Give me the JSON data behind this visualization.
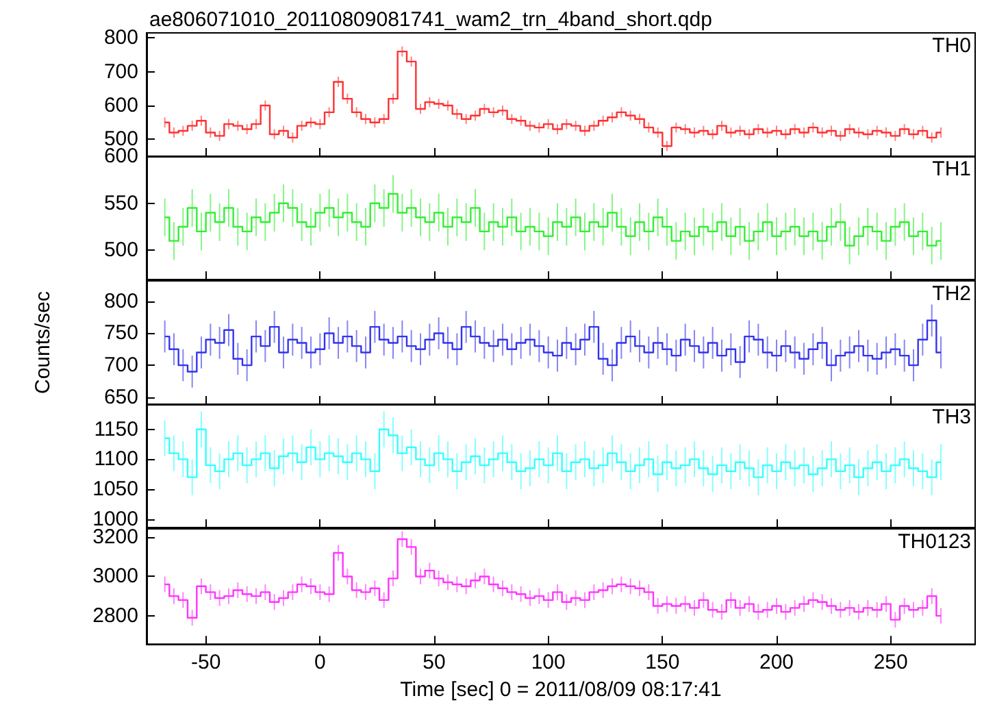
{
  "chart_data": [
    {
      "type": "step",
      "title": "ae806071010_20110809081741_wam2_trn_4band_short.qdp",
      "tick_labels": "y",
      "legend": "top right",
      "grid": false,
      "xlim": [
        -76,
        287
      ],
      "xticks": [
        -50,
        0,
        50,
        100,
        150,
        200,
        250
      ],
      "ylim": [
        450,
        815
      ],
      "yticks": [
        500,
        600,
        700,
        800
      ],
      "x": [
        -68,
        -64,
        -60,
        -56,
        -52,
        -48,
        -44,
        -40,
        -36,
        -32,
        -28,
        -24,
        -20,
        -16,
        -12,
        -8,
        -4,
        0,
        4,
        8,
        12,
        16,
        20,
        24,
        28,
        32,
        36,
        40,
        44,
        48,
        52,
        56,
        60,
        64,
        68,
        72,
        76,
        80,
        84,
        88,
        92,
        96,
        100,
        104,
        108,
        112,
        116,
        120,
        124,
        128,
        132,
        136,
        140,
        144,
        148,
        152,
        156,
        160,
        164,
        168,
        172,
        176,
        180,
        184,
        188,
        192,
        196,
        200,
        204,
        208,
        212,
        216,
        220,
        224,
        228,
        232,
        236,
        240,
        244,
        248,
        252,
        256,
        260,
        264,
        268,
        272
      ],
      "series": [
        {
          "name": "TH0",
          "color": "#ff3030",
          "values": [
            550,
            520,
            525,
            540,
            555,
            520,
            510,
            545,
            540,
            530,
            545,
            600,
            515,
            525,
            505,
            540,
            550,
            545,
            580,
            670,
            620,
            580,
            560,
            550,
            560,
            620,
            760,
            730,
            590,
            610,
            605,
            600,
            575,
            560,
            570,
            590,
            580,
            585,
            560,
            555,
            540,
            535,
            545,
            530,
            545,
            540,
            525,
            540,
            555,
            565,
            580,
            570,
            560,
            535,
            520,
            480,
            535,
            530,
            520,
            525,
            515,
            540,
            520,
            525,
            515,
            530,
            520,
            525,
            515,
            530,
            520,
            535,
            520,
            525,
            510,
            530,
            520,
            515,
            525,
            520,
            510,
            530,
            515,
            525,
            505,
            520
          ],
          "errors": [
            15,
            15,
            15,
            15,
            15,
            15,
            15,
            15,
            15,
            15,
            15,
            15,
            15,
            15,
            15,
            15,
            15,
            15,
            15,
            15,
            15,
            15,
            15,
            15,
            15,
            15,
            15,
            15,
            15,
            15,
            15,
            15,
            15,
            15,
            15,
            15,
            15,
            15,
            15,
            15,
            15,
            15,
            15,
            15,
            15,
            15,
            15,
            15,
            15,
            15,
            15,
            15,
            15,
            15,
            15,
            15,
            15,
            15,
            15,
            15,
            15,
            15,
            15,
            15,
            15,
            15,
            15,
            15,
            15,
            15,
            15,
            15,
            15,
            15,
            15,
            15,
            15,
            15,
            15,
            15,
            15,
            15,
            15,
            15,
            15,
            15
          ]
        }
      ]
    },
    {
      "type": "step",
      "tick_labels": "y",
      "legend": "top right",
      "grid": false,
      "xlim": [
        -76,
        287
      ],
      "xticks": [
        -50,
        0,
        50,
        100,
        150,
        200,
        250
      ],
      "ylim": [
        469,
        600
      ],
      "yticks": [
        500,
        550,
        600
      ],
      "x": [
        -68,
        -64,
        -60,
        -56,
        -52,
        -48,
        -44,
        -40,
        -36,
        -32,
        -28,
        -24,
        -20,
        -16,
        -12,
        -8,
        -4,
        0,
        4,
        8,
        12,
        16,
        20,
        24,
        28,
        32,
        36,
        40,
        44,
        48,
        52,
        56,
        60,
        64,
        68,
        72,
        76,
        80,
        84,
        88,
        92,
        96,
        100,
        104,
        108,
        112,
        116,
        120,
        124,
        128,
        132,
        136,
        140,
        144,
        148,
        152,
        156,
        160,
        164,
        168,
        172,
        176,
        180,
        184,
        188,
        192,
        196,
        200,
        204,
        208,
        212,
        216,
        220,
        224,
        228,
        232,
        236,
        240,
        244,
        248,
        252,
        256,
        260,
        264,
        268,
        272
      ],
      "series": [
        {
          "name": "TH1",
          "color": "#33ee33",
          "values": [
            535,
            510,
            525,
            545,
            520,
            540,
            530,
            545,
            525,
            520,
            535,
            530,
            540,
            550,
            545,
            530,
            525,
            540,
            545,
            535,
            540,
            530,
            525,
            550,
            545,
            560,
            540,
            545,
            535,
            530,
            540,
            525,
            535,
            530,
            545,
            520,
            530,
            525,
            535,
            520,
            525,
            520,
            515,
            530,
            525,
            535,
            520,
            530,
            525,
            540,
            525,
            515,
            530,
            520,
            535,
            525,
            510,
            520,
            515,
            525,
            520,
            530,
            515,
            525,
            510,
            520,
            530,
            515,
            520,
            525,
            515,
            520,
            510,
            525,
            530,
            505,
            515,
            525,
            520,
            510,
            525,
            530,
            515,
            520,
            505,
            510
          ],
          "errors": [
            20,
            20,
            20,
            20,
            20,
            20,
            20,
            20,
            20,
            20,
            20,
            20,
            20,
            20,
            20,
            20,
            20,
            20,
            20,
            20,
            20,
            20,
            20,
            20,
            20,
            20,
            20,
            20,
            20,
            20,
            20,
            20,
            20,
            20,
            20,
            20,
            20,
            20,
            20,
            20,
            20,
            20,
            20,
            20,
            20,
            20,
            20,
            20,
            20,
            20,
            20,
            20,
            20,
            20,
            20,
            20,
            20,
            20,
            20,
            20,
            20,
            20,
            20,
            20,
            20,
            20,
            20,
            20,
            20,
            20,
            20,
            20,
            20,
            20,
            20,
            20,
            20,
            20,
            20,
            20,
            20,
            20,
            20,
            20,
            20,
            20
          ]
        }
      ]
    },
    {
      "type": "step",
      "ylabel": "Counts/sec",
      "tick_labels": "y",
      "legend": "top right",
      "grid": false,
      "xlim": [
        -76,
        287
      ],
      "xticks": [
        -50,
        0,
        50,
        100,
        150,
        200,
        250
      ],
      "ylim": [
        639,
        832
      ],
      "yticks": [
        650,
        700,
        750,
        800
      ],
      "x": [
        -68,
        -64,
        -60,
        -56,
        -52,
        -48,
        -44,
        -40,
        -36,
        -32,
        -28,
        -24,
        -20,
        -16,
        -12,
        -8,
        -4,
        0,
        4,
        8,
        12,
        16,
        20,
        24,
        28,
        32,
        36,
        40,
        44,
        48,
        52,
        56,
        60,
        64,
        68,
        72,
        76,
        80,
        84,
        88,
        92,
        96,
        100,
        104,
        108,
        112,
        116,
        120,
        124,
        128,
        132,
        136,
        140,
        144,
        148,
        152,
        156,
        160,
        164,
        168,
        172,
        176,
        180,
        184,
        188,
        192,
        196,
        200,
        204,
        208,
        212,
        216,
        220,
        224,
        228,
        232,
        236,
        240,
        244,
        248,
        252,
        256,
        260,
        264,
        268,
        272
      ],
      "series": [
        {
          "name": "TH2",
          "color": "#3333ee",
          "values": [
            745,
            725,
            700,
            690,
            720,
            740,
            735,
            755,
            710,
            700,
            745,
            730,
            760,
            720,
            740,
            735,
            720,
            725,
            750,
            735,
            745,
            730,
            720,
            760,
            740,
            735,
            745,
            730,
            725,
            740,
            750,
            735,
            725,
            760,
            745,
            735,
            730,
            740,
            725,
            735,
            740,
            730,
            720,
            715,
            735,
            725,
            740,
            760,
            710,
            700,
            735,
            745,
            730,
            720,
            735,
            725,
            715,
            740,
            730,
            720,
            735,
            715,
            725,
            705,
            745,
            740,
            720,
            715,
            730,
            720,
            710,
            725,
            735,
            700,
            715,
            720,
            730,
            715,
            710,
            720,
            725,
            715,
            700,
            740,
            770,
            720
          ],
          "errors": [
            25,
            25,
            25,
            25,
            25,
            25,
            25,
            25,
            25,
            25,
            25,
            25,
            25,
            25,
            25,
            25,
            25,
            25,
            25,
            25,
            25,
            25,
            25,
            25,
            25,
            25,
            25,
            25,
            25,
            25,
            25,
            25,
            25,
            25,
            25,
            25,
            25,
            25,
            25,
            25,
            25,
            25,
            25,
            25,
            25,
            25,
            25,
            25,
            25,
            25,
            25,
            25,
            25,
            25,
            25,
            25,
            25,
            25,
            25,
            25,
            25,
            25,
            25,
            25,
            25,
            25,
            25,
            25,
            25,
            25,
            25,
            25,
            25,
            25,
            25,
            25,
            25,
            25,
            25,
            25,
            25,
            25,
            25,
            25,
            25,
            25
          ]
        }
      ]
    },
    {
      "type": "step",
      "tick_labels": "y",
      "legend": "top right",
      "grid": false,
      "xlim": [
        -76,
        287
      ],
      "xticks": [
        -50,
        0,
        50,
        100,
        150,
        200,
        250
      ],
      "ylim": [
        986,
        1192
      ],
      "yticks": [
        1000,
        1050,
        1100,
        1150
      ],
      "x": [
        -68,
        -64,
        -60,
        -56,
        -52,
        -48,
        -44,
        -40,
        -36,
        -32,
        -28,
        -24,
        -20,
        -16,
        -12,
        -8,
        -4,
        0,
        4,
        8,
        12,
        16,
        20,
        24,
        28,
        32,
        36,
        40,
        44,
        48,
        52,
        56,
        60,
        64,
        68,
        72,
        76,
        80,
        84,
        88,
        92,
        96,
        100,
        104,
        108,
        112,
        116,
        120,
        124,
        128,
        132,
        136,
        140,
        144,
        148,
        152,
        156,
        160,
        164,
        168,
        172,
        176,
        180,
        184,
        188,
        192,
        196,
        200,
        204,
        208,
        212,
        216,
        220,
        224,
        228,
        232,
        236,
        240,
        244,
        248,
        252,
        256,
        260,
        264,
        268,
        272
      ],
      "series": [
        {
          "name": "TH3",
          "color": "#33ffff",
          "values": [
            1135,
            1110,
            1100,
            1070,
            1150,
            1090,
            1080,
            1100,
            1110,
            1090,
            1100,
            1110,
            1085,
            1105,
            1110,
            1095,
            1120,
            1100,
            1110,
            1105,
            1095,
            1110,
            1100,
            1080,
            1150,
            1140,
            1110,
            1120,
            1100,
            1090,
            1110,
            1100,
            1080,
            1095,
            1105,
            1090,
            1100,
            1110,
            1095,
            1080,
            1085,
            1100,
            1090,
            1110,
            1080,
            1095,
            1100,
            1085,
            1090,
            1110,
            1095,
            1080,
            1090,
            1100,
            1075,
            1095,
            1085,
            1090,
            1100,
            1085,
            1075,
            1090,
            1080,
            1095,
            1085,
            1070,
            1090,
            1080,
            1095,
            1085,
            1090,
            1075,
            1085,
            1100,
            1080,
            1090,
            1070,
            1085,
            1095,
            1080,
            1090,
            1100,
            1085,
            1080,
            1070,
            1095
          ],
          "errors": [
            30,
            30,
            30,
            30,
            30,
            30,
            30,
            30,
            30,
            30,
            30,
            30,
            30,
            30,
            30,
            30,
            30,
            30,
            30,
            30,
            30,
            30,
            30,
            30,
            30,
            30,
            30,
            30,
            30,
            30,
            30,
            30,
            30,
            30,
            30,
            30,
            30,
            30,
            30,
            30,
            30,
            30,
            30,
            30,
            30,
            30,
            30,
            30,
            30,
            30,
            30,
            30,
            30,
            30,
            30,
            30,
            30,
            30,
            30,
            30,
            30,
            30,
            30,
            30,
            30,
            30,
            30,
            30,
            30,
            30,
            30,
            30,
            30,
            30,
            30,
            30,
            30,
            30,
            30,
            30,
            30,
            30,
            30,
            30,
            30,
            30
          ]
        }
      ]
    },
    {
      "type": "step",
      "xlabel": "Time [sec] 0 = 2011/08/09 08:17:41",
      "legend": "top right",
      "grid": false,
      "xlim": [
        -76,
        287
      ],
      "xticks": [
        -50,
        0,
        50,
        100,
        150,
        200,
        250
      ],
      "ylim": [
        2656,
        3242
      ],
      "yticks": [
        2800,
        3000,
        3200
      ],
      "x": [
        -68,
        -64,
        -60,
        -56,
        -52,
        -48,
        -44,
        -40,
        -36,
        -32,
        -28,
        -24,
        -20,
        -16,
        -12,
        -8,
        -4,
        0,
        4,
        8,
        12,
        16,
        20,
        24,
        28,
        32,
        36,
        40,
        44,
        48,
        52,
        56,
        60,
        64,
        68,
        72,
        76,
        80,
        84,
        88,
        92,
        96,
        100,
        104,
        108,
        112,
        116,
        120,
        124,
        128,
        132,
        136,
        140,
        144,
        148,
        152,
        156,
        160,
        164,
        168,
        172,
        176,
        180,
        184,
        188,
        192,
        196,
        200,
        204,
        208,
        212,
        216,
        220,
        224,
        228,
        232,
        236,
        240,
        244,
        248,
        252,
        256,
        260,
        264,
        268,
        272
      ],
      "series": [
        {
          "name": "TH0123",
          "color": "#ff33ff",
          "values": [
            2960,
            2900,
            2880,
            2790,
            2950,
            2920,
            2890,
            2900,
            2930,
            2910,
            2900,
            2920,
            2870,
            2890,
            2920,
            2960,
            2950,
            2920,
            2910,
            3120,
            3000,
            2930,
            2920,
            2940,
            2880,
            2990,
            3190,
            3150,
            3000,
            3030,
            2990,
            2970,
            2960,
            2950,
            2980,
            3000,
            2960,
            2940,
            2920,
            2910,
            2890,
            2900,
            2880,
            2920,
            2870,
            2890,
            2880,
            2920,
            2930,
            2950,
            2960,
            2950,
            2940,
            2920,
            2850,
            2860,
            2850,
            2860,
            2840,
            2880,
            2830,
            2820,
            2880,
            2840,
            2860,
            2820,
            2830,
            2850,
            2820,
            2840,
            2860,
            2880,
            2870,
            2850,
            2830,
            2840,
            2820,
            2840,
            2830,
            2860,
            2780,
            2850,
            2830,
            2840,
            2900,
            2800
          ],
          "errors": [
            40,
            40,
            40,
            40,
            40,
            40,
            40,
            40,
            40,
            40,
            40,
            40,
            40,
            40,
            40,
            40,
            40,
            40,
            40,
            40,
            40,
            40,
            40,
            40,
            40,
            40,
            40,
            40,
            40,
            40,
            40,
            40,
            40,
            40,
            40,
            40,
            40,
            40,
            40,
            40,
            40,
            40,
            40,
            40,
            40,
            40,
            40,
            40,
            40,
            40,
            40,
            40,
            40,
            40,
            40,
            40,
            40,
            40,
            40,
            40,
            40,
            40,
            40,
            40,
            40,
            40,
            40,
            40,
            40,
            40,
            40,
            40,
            40,
            40,
            40,
            40,
            40,
            40,
            40,
            40,
            40,
            40,
            40,
            40,
            40,
            40
          ]
        }
      ]
    }
  ]
}
